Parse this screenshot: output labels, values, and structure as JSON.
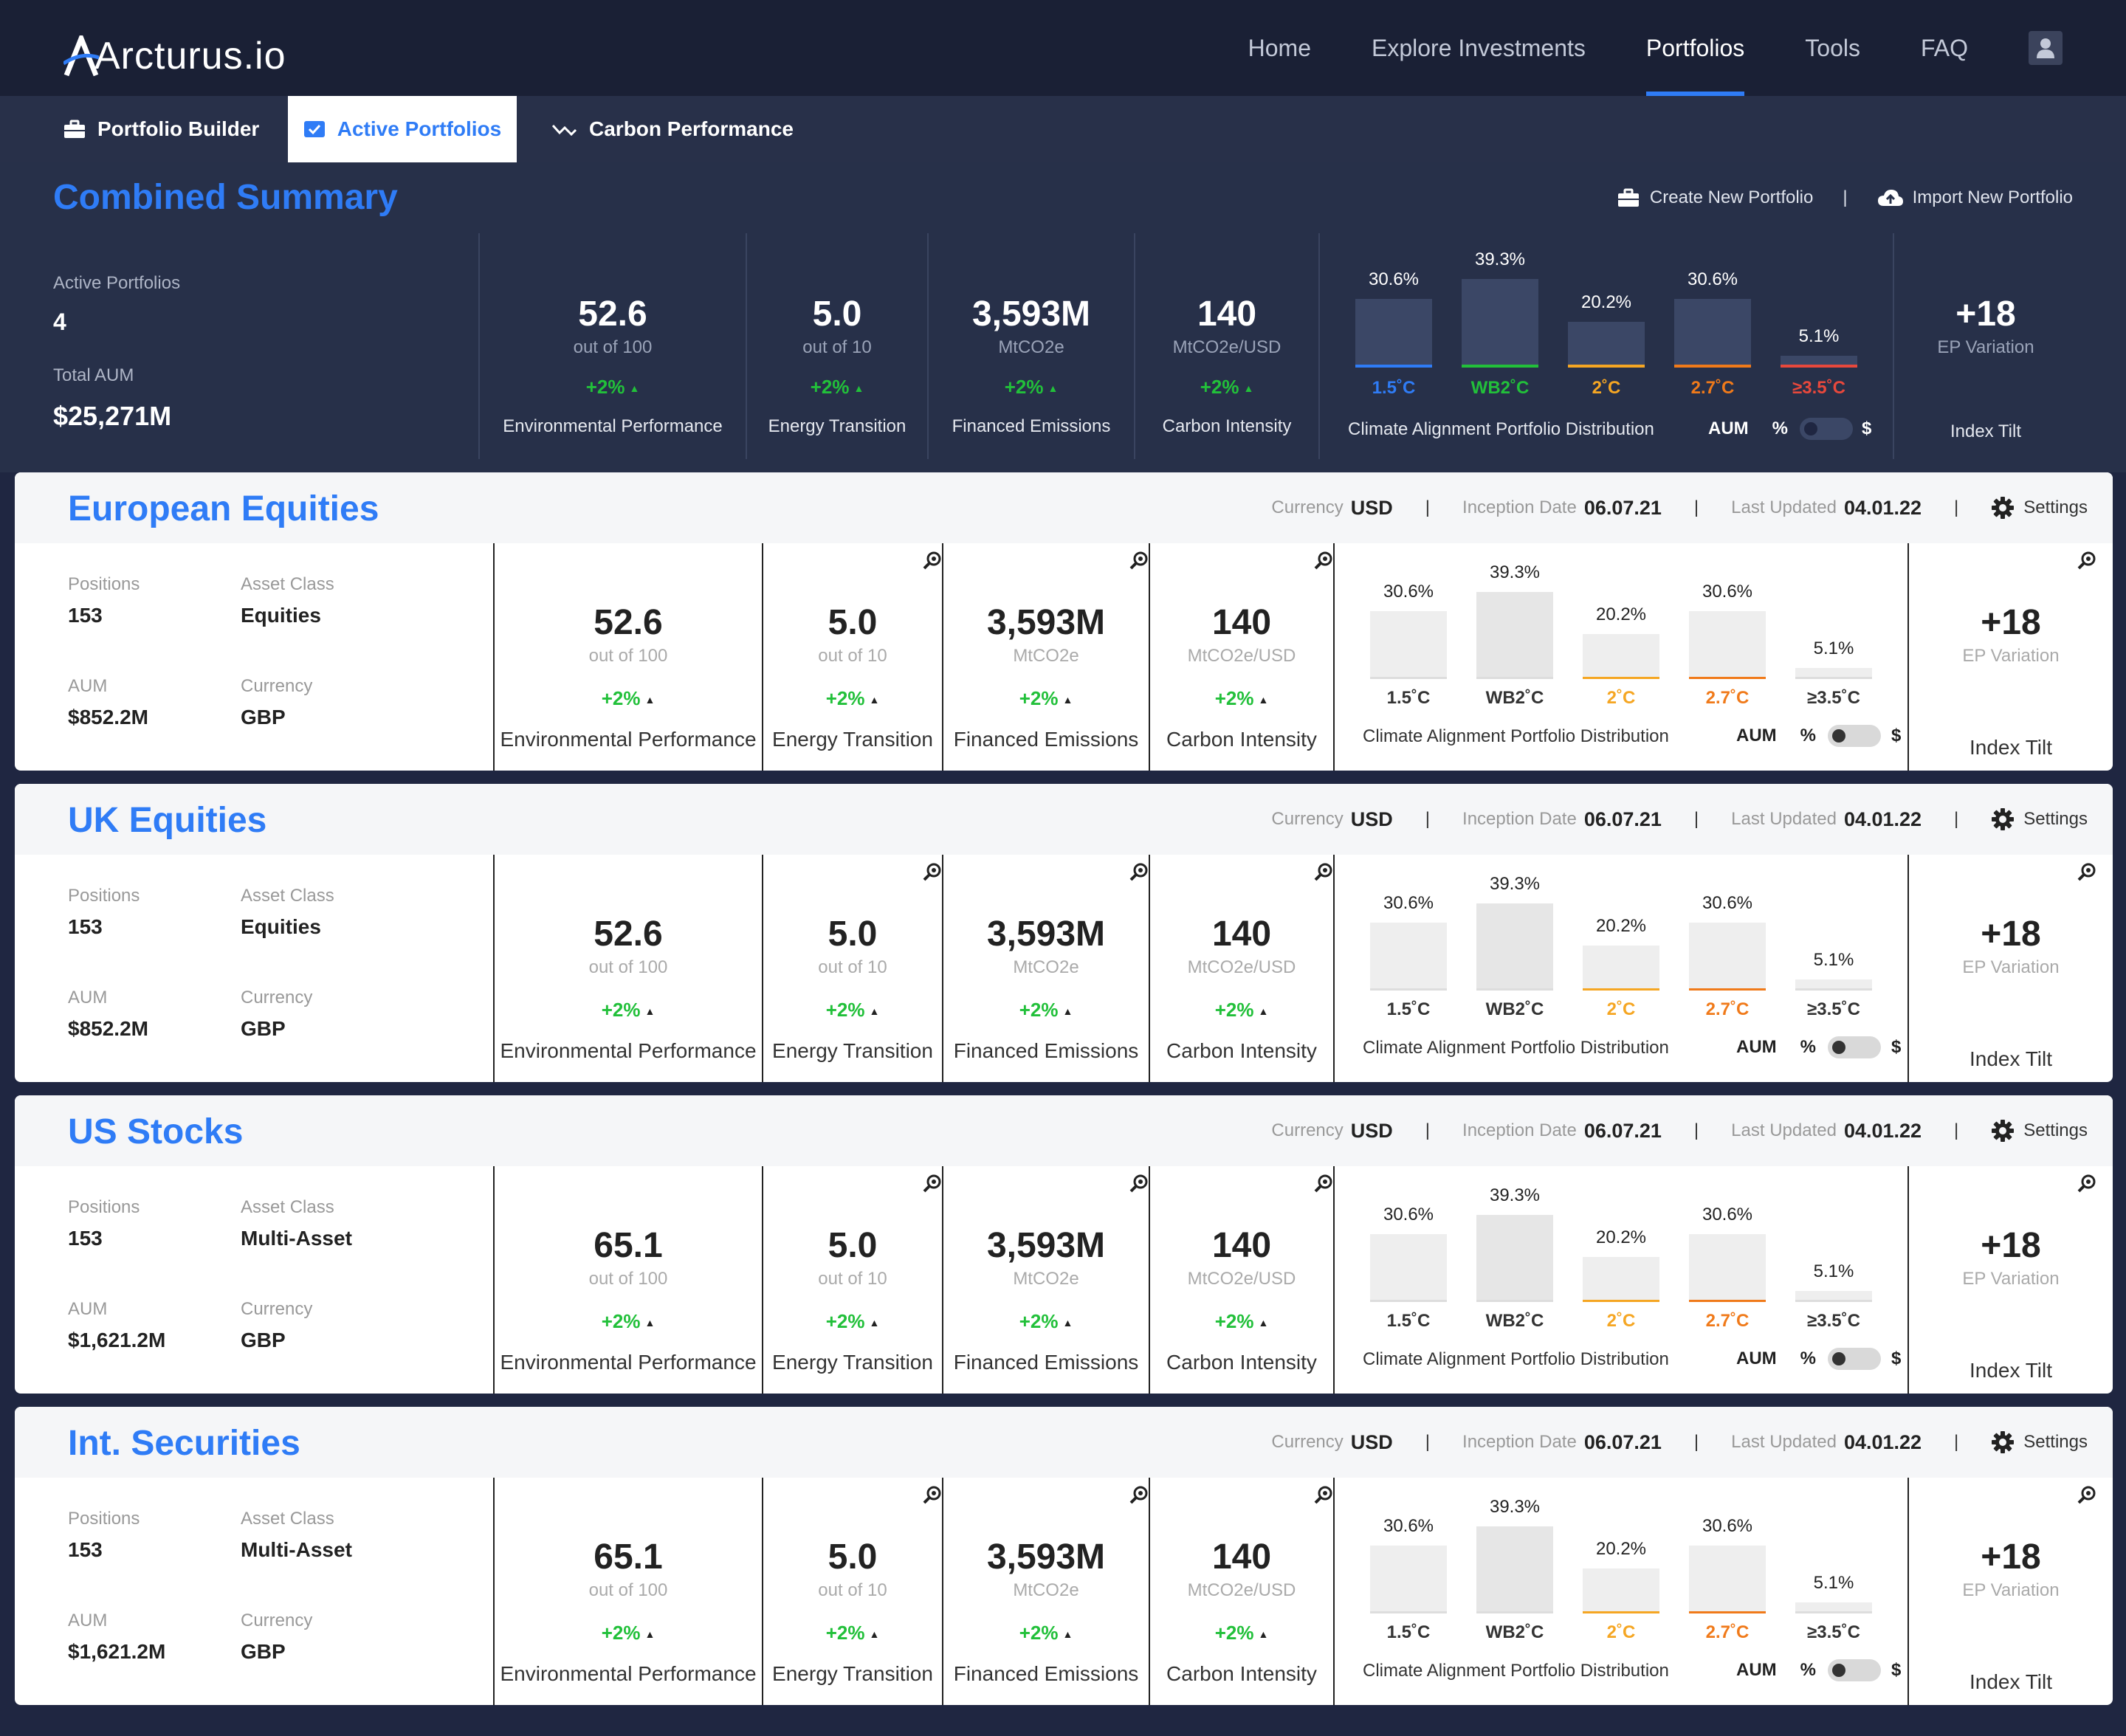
{
  "brand": {
    "name": "Arcturus.io"
  },
  "nav": {
    "items": [
      {
        "label": "Home",
        "active": false
      },
      {
        "label": "Explore Investments",
        "active": false
      },
      {
        "label": "Portfolios",
        "active": true
      },
      {
        "label": "Tools",
        "active": false
      },
      {
        "label": "FAQ",
        "active": false
      }
    ],
    "user_icon": "user-icon"
  },
  "subnav": {
    "tabs": [
      {
        "label": "Portfolio Builder",
        "icon": "briefcase-icon",
        "active": false
      },
      {
        "label": "Active Portfolios",
        "icon": "checkbox-icon",
        "active": true
      },
      {
        "label": "Carbon Performance",
        "icon": "trend-icon",
        "active": false
      }
    ]
  },
  "summary": {
    "title": "Combined Summary",
    "actions": {
      "create": "Create New Portfolio",
      "import": "Import New Portfolio"
    },
    "active_portfolios_label": "Active Portfolios",
    "active_portfolios": "4",
    "total_aum_label": "Total AUM",
    "total_aum": "$25,271M",
    "metrics": [
      {
        "value": "52.6",
        "unit": "out of 100",
        "change": "+2%",
        "name": "Environmental Performance"
      },
      {
        "value": "5.0",
        "unit": "out of 10",
        "change": "+2%",
        "name": "Energy Transition"
      },
      {
        "value": "3,593M",
        "unit": "MtCO2e",
        "change": "+2%",
        "name": "Financed Emissions"
      },
      {
        "value": "140",
        "unit": "MtCO2e/USD",
        "change": "+2%",
        "name": "Carbon Intensity"
      }
    ],
    "distribution": {
      "name": "Climate Alignment Portfolio Distribution",
      "toggle_aum": "AUM",
      "toggle_pct": "%",
      "toggle_usd": "$",
      "bars": [
        {
          "label": "1.5˚C",
          "pct": "30.6%",
          "value": 30.6,
          "color": "#2f7cf6"
        },
        {
          "label": "WB2˚C",
          "pct": "39.3%",
          "value": 39.3,
          "color": "#22c03a"
        },
        {
          "label": "2˚C",
          "pct": "20.2%",
          "value": 20.2,
          "color": "#f5a623"
        },
        {
          "label": "2.7˚C",
          "pct": "30.6%",
          "value": 30.6,
          "color": "#f07a1a"
        },
        {
          "label": "≥3.5˚C",
          "pct": "5.1%",
          "value": 5.1,
          "color": "#e8483c"
        }
      ]
    },
    "tilt": {
      "value": "+18",
      "unit": "EP Variation",
      "name": "Index Tilt"
    }
  },
  "labels": {
    "positions": "Positions",
    "asset_class": "Asset Class",
    "aum": "AUM",
    "currency": "Currency",
    "meta_currency": "Currency",
    "meta_inception": "Inception Date",
    "meta_updated": "Last Updated",
    "settings": "Settings",
    "ep_name": "Environmental Performance",
    "et_name": "Energy Transition",
    "fe_name": "Financed Emissions",
    "ci_name": "Carbon Intensity",
    "dist_name": "Climate Alignment Portfolio Distribution",
    "tilt_name": "Index Tilt",
    "tilt_unit": "EP Variation",
    "ep_unit": "out of 100",
    "et_unit": "out of 10",
    "fe_unit": "MtCO2e",
    "ci_unit": "MtCO2e/USD",
    "toggle_aum": "AUM",
    "toggle_pct": "%",
    "toggle_usd": "$"
  },
  "portfolios": [
    {
      "title": "European Equities",
      "currency": "USD",
      "inception": "06.07.21",
      "updated": "04.01.22",
      "positions": "153",
      "asset_class": "Equities",
      "aum": "$852.2M",
      "base_currency": "GBP",
      "ep": "52.6",
      "et": "5.0",
      "fe": "3,593M",
      "ci": "140",
      "change": "+2%",
      "tilt": "+18"
    },
    {
      "title": "UK Equities",
      "currency": "USD",
      "inception": "06.07.21",
      "updated": "04.01.22",
      "positions": "153",
      "asset_class": "Equities",
      "aum": "$852.2M",
      "base_currency": "GBP",
      "ep": "52.6",
      "et": "5.0",
      "fe": "3,593M",
      "ci": "140",
      "change": "+2%",
      "tilt": "+18"
    },
    {
      "title": "US Stocks",
      "currency": "USD",
      "inception": "06.07.21",
      "updated": "04.01.22",
      "positions": "153",
      "asset_class": "Multi-Asset",
      "aum": "$1,621.2M",
      "base_currency": "GBP",
      "ep": "65.1",
      "et": "5.0",
      "fe": "3,593M",
      "ci": "140",
      "change": "+2%",
      "tilt": "+18"
    },
    {
      "title": "Int. Securities",
      "currency": "USD",
      "inception": "06.07.21",
      "updated": "04.01.22",
      "positions": "153",
      "asset_class": "Multi-Asset",
      "aum": "$1,621.2M",
      "base_currency": "GBP",
      "ep": "65.1",
      "et": "5.0",
      "fe": "3,593M",
      "ci": "140",
      "change": "+2%",
      "tilt": "+18"
    }
  ],
  "card_bars": [
    {
      "label": "1.5˚C",
      "pct": "30.6%",
      "value": 30.6,
      "color": "#333333"
    },
    {
      "label": "WB2˚C",
      "pct": "39.3%",
      "value": 39.3,
      "color": "#333333"
    },
    {
      "label": "2˚C",
      "pct": "20.2%",
      "value": 20.2,
      "color": "#f5a623"
    },
    {
      "label": "2.7˚C",
      "pct": "30.6%",
      "value": 30.6,
      "color": "#f07a1a"
    },
    {
      "label": "≥3.5˚C",
      "pct": "5.1%",
      "value": 5.1,
      "color": "#333333"
    }
  ]
}
